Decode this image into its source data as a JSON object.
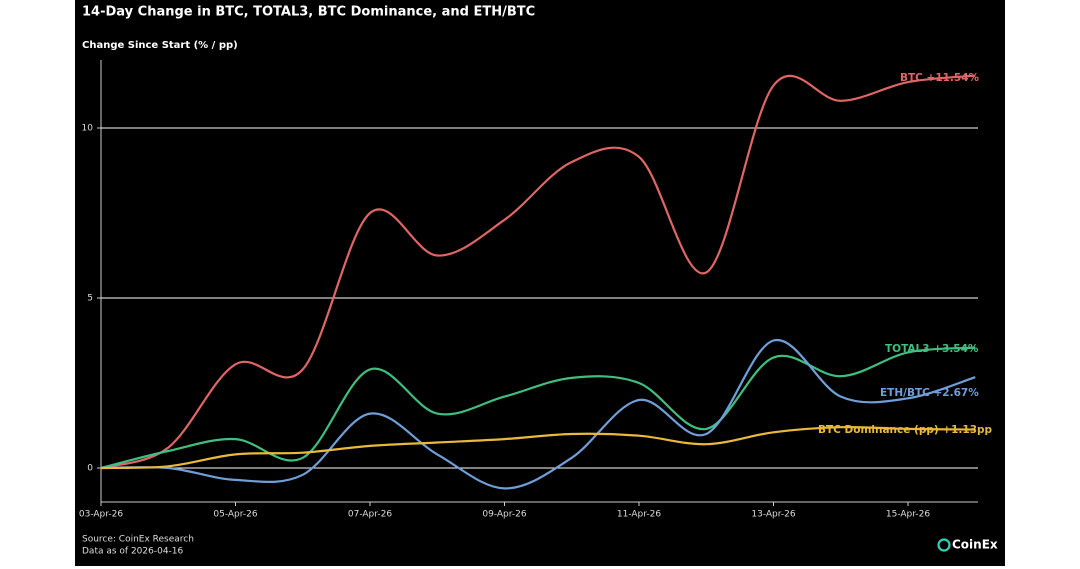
{
  "chart_data": {
    "type": "line",
    "title": "14-Day Change in BTC, TOTAL3, BTC Dominance, and ETH/BTC",
    "y_label": "Change Since Start (% / pp)",
    "source": "Source: CoinEx Research",
    "note": "Data as of 2026-04-16",
    "brand": "CoinEx",
    "categories": [
      "03-Apr-26",
      null,
      "05-Apr-26",
      null,
      "07-Apr-26",
      null,
      "09-Apr-26",
      null,
      "11-Apr-26",
      null,
      "13-Apr-26",
      null,
      "15-Apr-26",
      null
    ],
    "ylim": [
      -1,
      12
    ],
    "yticks": [
      0,
      5,
      10
    ],
    "grid": true,
    "series": [
      {
        "name": "BTC",
        "label": "BTC +11.54%",
        "color": "#e06666",
        "values": [
          0,
          0.6,
          3.05,
          2.9,
          7.5,
          6.25,
          7.3,
          9.0,
          9.15,
          5.75,
          11.25,
          10.8,
          11.35,
          11.54
        ]
      },
      {
        "name": "TOTAL3",
        "label": "TOTAL3 +3.54%",
        "color": "#3fbf7f",
        "values": [
          0,
          0.5,
          0.85,
          0.3,
          2.9,
          1.6,
          2.1,
          2.65,
          2.5,
          1.15,
          3.25,
          2.7,
          3.4,
          3.54
        ]
      },
      {
        "name": "ETH/BTC",
        "label": "ETH/BTC +2.67%",
        "color": "#6f9fd8",
        "values": [
          0,
          0,
          -0.35,
          -0.2,
          1.6,
          0.4,
          -0.6,
          0.3,
          2.0,
          1.0,
          3.75,
          2.1,
          2.05,
          2.67
        ]
      },
      {
        "name": "BTC Dominance (pp)",
        "label": "BTC Dominance (pp) +1.13pp",
        "color": "#e8b93a",
        "values": [
          0,
          0.05,
          0.4,
          0.45,
          0.65,
          0.75,
          0.85,
          1.0,
          0.95,
          0.7,
          1.05,
          1.2,
          1.15,
          1.13
        ]
      }
    ]
  }
}
